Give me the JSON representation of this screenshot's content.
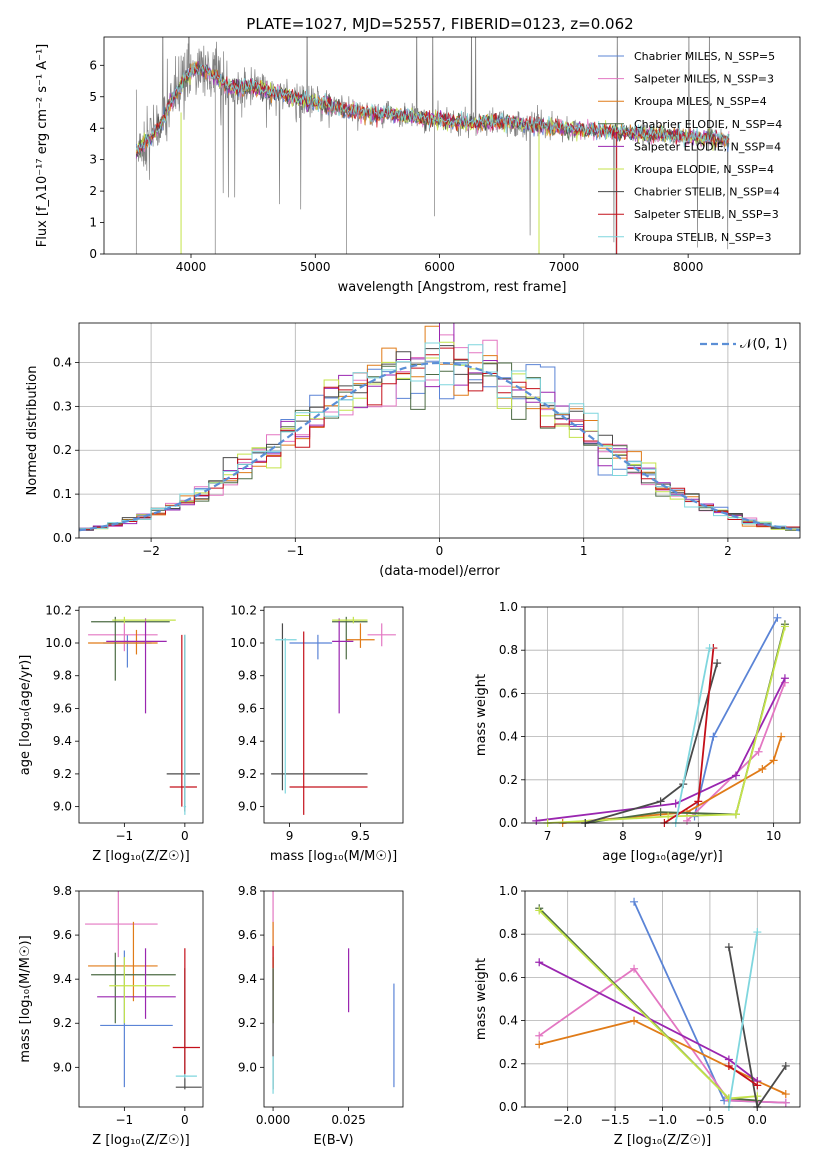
{
  "title": "PLATE=1027, MJD=52557, FIBERID=0123, z=0.062",
  "colors": {
    "chabrier_miles": "#5b84d6",
    "salpeter_miles": "#e377c2",
    "kroupa_miles": "#e07b18",
    "chabrier_elodie": "#4d6b44",
    "salpeter_elodie": "#9a26b0",
    "kroupa_elodie": "#c4e34a",
    "chabrier_stelib": "#4a4a4a",
    "salpeter_stelib": "#c4101a",
    "kroupa_stelib": "#7fd6de",
    "data": "#808080",
    "normal": "#5b8fd6"
  },
  "chart_data": [
    {
      "id": "spectrum",
      "type": "line",
      "xlabel": "wavelength [Angstrom, rest frame]",
      "ylabel": "Flux [f_λ10⁻¹⁷ erg cm⁻² s⁻¹ A⁻¹]",
      "xlim": [
        3300,
        8900
      ],
      "ylim": [
        0,
        6.9
      ],
      "xticks": [
        4000,
        5000,
        6000,
        7000,
        8000
      ],
      "yticks": [
        0,
        1,
        2,
        3,
        4,
        5,
        6
      ],
      "legend_position": "upper-right",
      "legend": [
        {
          "label": "Chabrier MILES, N_SSP=5",
          "color_key": "chabrier_miles"
        },
        {
          "label": "Salpeter MILES, N_SSP=3",
          "color_key": "salpeter_miles"
        },
        {
          "label": "Kroupa MILES, N_SSP=4",
          "color_key": "kroupa_miles"
        },
        {
          "label": "Chabrier ELODIE, N_SSP=4",
          "color_key": "chabrier_elodie"
        },
        {
          "label": "Salpeter ELODIE, N_SSP=4",
          "color_key": "salpeter_elodie"
        },
        {
          "label": "Kroupa ELODIE, N_SSP=4",
          "color_key": "kroupa_elodie"
        },
        {
          "label": "Chabrier STELIB, N_SSP=4",
          "color_key": "chabrier_stelib"
        },
        {
          "label": "Salpeter STELIB, N_SSP=3",
          "color_key": "salpeter_stelib"
        },
        {
          "label": "Kroupa STELIB, N_SSP=3",
          "color_key": "kroupa_stelib"
        }
      ],
      "continuum": [
        [
          3560,
          3.3
        ],
        [
          3650,
          3.6
        ],
        [
          3750,
          4.1
        ],
        [
          3850,
          4.9
        ],
        [
          3950,
          5.6
        ],
        [
          4050,
          5.9
        ],
        [
          4150,
          5.8
        ],
        [
          4300,
          5.3
        ],
        [
          4500,
          5.3
        ],
        [
          4700,
          5.1
        ],
        [
          4900,
          4.9
        ],
        [
          5100,
          4.7
        ],
        [
          5300,
          4.55
        ],
        [
          5500,
          4.45
        ],
        [
          5700,
          4.4
        ],
        [
          5900,
          4.3
        ],
        [
          6100,
          4.2
        ],
        [
          6300,
          4.15
        ],
        [
          6500,
          4.2
        ],
        [
          6700,
          4.1
        ],
        [
          6900,
          4.05
        ],
        [
          7100,
          3.95
        ],
        [
          7300,
          3.9
        ],
        [
          7500,
          3.85
        ],
        [
          7700,
          3.8
        ],
        [
          7900,
          3.75
        ],
        [
          8100,
          3.7
        ],
        [
          8300,
          3.65
        ]
      ]
    },
    {
      "id": "residuals",
      "type": "histogram",
      "xlabel": "(data-model)/error",
      "ylabel": "Normed distribution",
      "xlim": [
        -2.5,
        2.5
      ],
      "ylim": [
        0,
        0.49
      ],
      "xticks": [
        -2,
        -1,
        0,
        1,
        2
      ],
      "yticks": [
        0.0,
        0.1,
        0.2,
        0.3,
        0.4
      ],
      "grid": true,
      "legend_position": "upper-right",
      "legend_label": "𝒩(0, 1)",
      "bin_width": 0.1,
      "bin_start": -2.5
    },
    {
      "id": "z-age",
      "type": "errorbar",
      "xlabel": "Z [log₁₀(Z/Z☉)]",
      "ylabel": "age  [log₁₀(age/yr)]",
      "xlim": [
        -1.75,
        0.3
      ],
      "ylim": [
        8.9,
        10.22
      ],
      "xticks": [
        -1,
        0
      ],
      "yticks": [
        9.0,
        9.2,
        9.4,
        9.6,
        9.8,
        10.0,
        10.2
      ]
    },
    {
      "id": "mass-age",
      "type": "errorbar",
      "xlabel": "mass [log₁₀(M/M☉)]",
      "xlim": [
        8.82,
        9.8
      ],
      "ylim": [
        8.9,
        10.22
      ],
      "xticks": [
        9.0,
        9.5
      ],
      "yticks": [
        9.0,
        9.2,
        9.4,
        9.6,
        9.8,
        10.0,
        10.2
      ]
    },
    {
      "id": "age-massweight",
      "type": "line",
      "xlabel": "age  [log₁₀(age/yr)]",
      "ylabel": "mass weight",
      "xlim": [
        6.7,
        10.35
      ],
      "ylim": [
        0,
        1.0
      ],
      "xticks": [
        7,
        8,
        9,
        10
      ],
      "yticks": [
        0.0,
        0.2,
        0.4,
        0.6,
        0.8,
        1.0
      ],
      "grid": true
    },
    {
      "id": "z-mass",
      "type": "errorbar",
      "xlabel": "Z [log₁₀(Z/Z☉)]",
      "ylabel": "mass [log₁₀(M/M☉)]",
      "xlim": [
        -1.75,
        0.3
      ],
      "ylim": [
        8.82,
        9.8
      ],
      "xticks": [
        -1,
        0
      ],
      "yticks": [
        9.0,
        9.2,
        9.4,
        9.6,
        9.8
      ]
    },
    {
      "id": "ebv-mass",
      "type": "errorbar",
      "xlabel": "E(B-V)",
      "xlim": [
        -0.003,
        0.043
      ],
      "ylim": [
        8.82,
        9.8
      ],
      "xticks": [
        0.0,
        0.025
      ],
      "xticklabels": [
        "0.000",
        "0.025"
      ],
      "yticks": [
        9.0,
        9.2,
        9.4,
        9.6,
        9.8
      ]
    },
    {
      "id": "z-massweight",
      "type": "line",
      "xlabel": "Z [log₁₀(Z/Z☉)]",
      "ylabel": "mass weight",
      "xlim": [
        -2.45,
        0.45
      ],
      "ylim": [
        0,
        1.0
      ],
      "xticks": [
        -2.0,
        -1.5,
        -1.0,
        -0.5,
        0.0
      ],
      "xticklabels": [
        "−2.0",
        "−1.5",
        "−1.0",
        "−0.5",
        "0.0"
      ],
      "yticks": [
        0.0,
        0.2,
        0.4,
        0.6,
        0.8,
        1.0
      ],
      "grid": true
    }
  ],
  "series_points": {
    "age_weight": [
      {
        "key": "chabrier_miles",
        "pts": [
          [
            8.95,
            0.03
          ],
          [
            9.2,
            0.4
          ],
          [
            10.05,
            0.95
          ]
        ]
      },
      {
        "key": "salpeter_miles",
        "pts": [
          [
            8.85,
            0.01
          ],
          [
            9.8,
            0.33
          ],
          [
            10.15,
            0.65
          ]
        ]
      },
      {
        "key": "kroupa_miles",
        "pts": [
          [
            7.2,
            0.0
          ],
          [
            8.85,
            0.05
          ],
          [
            9.85,
            0.25
          ],
          [
            10.0,
            0.29
          ],
          [
            10.1,
            0.4
          ]
        ]
      },
      {
        "key": "chabrier_elodie",
        "pts": [
          [
            7.5,
            0.0
          ],
          [
            8.5,
            0.05
          ],
          [
            9.5,
            0.04
          ],
          [
            10.15,
            0.92
          ]
        ]
      },
      {
        "key": "salpeter_elodie",
        "pts": [
          [
            6.85,
            0.01
          ],
          [
            8.7,
            0.09
          ],
          [
            9.5,
            0.22
          ],
          [
            10.15,
            0.67
          ]
        ]
      },
      {
        "key": "kroupa_elodie",
        "pts": [
          [
            7.0,
            0.0
          ],
          [
            8.6,
            0.03
          ],
          [
            9.5,
            0.04
          ],
          [
            10.15,
            0.91
          ]
        ]
      },
      {
        "key": "chabrier_stelib",
        "pts": [
          [
            7.5,
            0.0
          ],
          [
            8.5,
            0.1
          ],
          [
            8.8,
            0.18
          ],
          [
            9.25,
            0.74
          ]
        ]
      },
      {
        "key": "salpeter_stelib",
        "pts": [
          [
            8.55,
            0.0
          ],
          [
            9.0,
            0.1
          ],
          [
            9.2,
            0.81
          ]
        ]
      },
      {
        "key": "kroupa_stelib",
        "pts": [
          [
            8.7,
            0.0
          ],
          [
            9.15,
            0.81
          ]
        ]
      }
    ],
    "z_weight": [
      {
        "key": "chabrier_miles",
        "pts": [
          [
            -1.3,
            0.95
          ],
          [
            -0.35,
            0.03
          ],
          [
            0.3,
            0.02
          ]
        ]
      },
      {
        "key": "salpeter_miles",
        "pts": [
          [
            -2.3,
            0.33
          ],
          [
            -1.3,
            0.64
          ],
          [
            -0.3,
            0.03
          ],
          [
            0.3,
            0.02
          ]
        ]
      },
      {
        "key": "kroupa_miles",
        "pts": [
          [
            -2.3,
            0.29
          ],
          [
            -1.3,
            0.4
          ],
          [
            0.0,
            0.12
          ],
          [
            0.3,
            0.06
          ]
        ]
      },
      {
        "key": "chabrier_elodie",
        "pts": [
          [
            -2.3,
            0.92
          ],
          [
            -0.3,
            0.04
          ],
          [
            0.0,
            0.03
          ]
        ]
      },
      {
        "key": "salpeter_elodie",
        "pts": [
          [
            -2.3,
            0.67
          ],
          [
            -0.3,
            0.22
          ],
          [
            0.0,
            0.12
          ]
        ]
      },
      {
        "key": "kroupa_elodie",
        "pts": [
          [
            -2.3,
            0.91
          ],
          [
            -0.3,
            0.04
          ],
          [
            0.0,
            0.05
          ]
        ]
      },
      {
        "key": "chabrier_stelib",
        "pts": [
          [
            -0.3,
            0.74
          ],
          [
            0.0,
            0.0
          ],
          [
            0.3,
            0.19
          ]
        ]
      },
      {
        "key": "salpeter_stelib",
        "pts": [
          [
            -0.3,
            0.19
          ],
          [
            0.0,
            0.1
          ]
        ]
      },
      {
        "key": "kroupa_stelib",
        "pts": [
          [
            -0.3,
            0.0
          ],
          [
            0.0,
            0.81
          ]
        ]
      }
    ]
  },
  "errorbars": {
    "z_age": [
      {
        "key": "chabrier_miles",
        "x": -0.95,
        "y": 10.0,
        "xe": [
          -1.35,
          -0.55
        ],
        "ye": [
          9.85,
          10.05
        ]
      },
      {
        "key": "salpeter_miles",
        "x": -1.0,
        "y": 10.05,
        "xe": [
          -1.6,
          -0.45
        ],
        "ye": [
          9.95,
          10.12
        ]
      },
      {
        "key": "kroupa_miles",
        "x": -0.8,
        "y": 10.0,
        "xe": [
          -1.6,
          -0.45
        ],
        "ye": [
          9.93,
          10.08
        ]
      },
      {
        "key": "chabrier_elodie",
        "x": -1.15,
        "y": 10.13,
        "xe": [
          -1.55,
          -0.25
        ],
        "ye": [
          9.77,
          10.16
        ]
      },
      {
        "key": "salpeter_elodie",
        "x": -0.65,
        "y": 10.01,
        "xe": [
          -1.3,
          -0.3
        ],
        "ye": [
          9.57,
          10.15
        ]
      },
      {
        "key": "kroupa_elodie",
        "x": -1.0,
        "y": 10.14,
        "xe": [
          -1.2,
          -0.15
        ],
        "ye": [
          10.12,
          10.16
        ]
      },
      {
        "key": "chabrier_stelib",
        "x": 0.0,
        "y": 9.2,
        "xe": [
          -0.3,
          0.25
        ],
        "ye": [
          8.97,
          10.05
        ]
      },
      {
        "key": "salpeter_stelib",
        "x": -0.05,
        "y": 9.12,
        "xe": [
          -0.25,
          0.2
        ],
        "ye": [
          9.0,
          10.05
        ]
      },
      {
        "key": "kroupa_stelib",
        "x": 0.0,
        "y": 9.0,
        "xe": [
          -0.02,
          0.02
        ],
        "ye": [
          8.95,
          10.05
        ]
      }
    ],
    "mass_age": [
      {
        "key": "chabrier_miles",
        "x": 9.2,
        "y": 10.0,
        "xe": [
          9.0,
          9.3
        ],
        "ye": [
          9.9,
          10.05
        ]
      },
      {
        "key": "salpeter_miles",
        "x": 9.65,
        "y": 10.05,
        "xe": [
          9.55,
          9.75
        ],
        "ye": [
          9.98,
          10.12
        ]
      },
      {
        "key": "kroupa_miles",
        "x": 9.5,
        "y": 10.02,
        "xe": [
          9.4,
          9.6
        ],
        "ye": [
          9.97,
          10.12
        ]
      },
      {
        "key": "chabrier_elodie",
        "x": 9.4,
        "y": 10.13,
        "xe": [
          9.3,
          9.55
        ],
        "ye": [
          9.9,
          10.16
        ]
      },
      {
        "key": "salpeter_elodie",
        "x": 9.35,
        "y": 10.01,
        "xe": [
          9.3,
          9.45
        ],
        "ye": [
          9.57,
          10.15
        ]
      },
      {
        "key": "kroupa_elodie",
        "x": 9.45,
        "y": 10.14,
        "xe": [
          9.3,
          9.55
        ],
        "ye": [
          10.12,
          10.16
        ]
      },
      {
        "key": "chabrier_stelib",
        "x": 8.95,
        "y": 9.2,
        "xe": [
          8.87,
          9.55
        ],
        "ye": [
          9.1,
          10.12
        ]
      },
      {
        "key": "salpeter_stelib",
        "x": 9.1,
        "y": 9.12,
        "xe": [
          9.0,
          9.55
        ],
        "ye": [
          8.95,
          10.07
        ]
      },
      {
        "key": "kroupa_stelib",
        "x": 8.97,
        "y": 10.02,
        "xe": [
          8.9,
          9.05
        ],
        "ye": [
          9.08,
          10.03
        ]
      }
    ],
    "z_mass": [
      {
        "key": "chabrier_miles",
        "x": -1.0,
        "y": 9.19,
        "xe": [
          -1.4,
          -0.2
        ],
        "ye": [
          8.91,
          9.53
        ]
      },
      {
        "key": "salpeter_miles",
        "x": -1.1,
        "y": 9.65,
        "xe": [
          -1.65,
          -0.45
        ],
        "ye": [
          9.5,
          9.8
        ]
      },
      {
        "key": "kroupa_miles",
        "x": -0.85,
        "y": 9.46,
        "xe": [
          -1.6,
          -0.45
        ],
        "ye": [
          9.3,
          9.66
        ]
      },
      {
        "key": "chabrier_elodie",
        "x": -1.15,
        "y": 9.42,
        "xe": [
          -1.55,
          -0.15
        ],
        "ye": [
          9.2,
          9.52
        ]
      },
      {
        "key": "salpeter_elodie",
        "x": -0.65,
        "y": 9.32,
        "xe": [
          -1.45,
          -0.15
        ],
        "ye": [
          9.22,
          9.54
        ]
      },
      {
        "key": "kroupa_elodie",
        "x": -1.0,
        "y": 9.37,
        "xe": [
          -1.25,
          -0.25
        ],
        "ye": [
          9.2,
          9.5
        ]
      },
      {
        "key": "chabrier_stelib",
        "x": 0.0,
        "y": 8.91,
        "xe": [
          -0.15,
          0.28
        ],
        "ye": [
          8.9,
          9.45
        ]
      },
      {
        "key": "salpeter_stelib",
        "x": 0.0,
        "y": 9.09,
        "xe": [
          -0.2,
          0.25
        ],
        "ye": [
          8.95,
          9.54
        ]
      },
      {
        "key": "kroupa_stelib",
        "x": 0.0,
        "y": 8.96,
        "xe": [
          -0.15,
          0.2
        ],
        "ye": [
          8.95,
          8.97
        ]
      }
    ],
    "ebv_mass": [
      {
        "key": "chabrier_miles",
        "x": 0.04,
        "y": 9.15,
        "xe": [
          0.04,
          0.04
        ],
        "ye": [
          8.91,
          9.38
        ]
      },
      {
        "key": "salpeter_miles",
        "x": 0.0,
        "y": 9.65,
        "xe": [
          0.0,
          0.0
        ],
        "ye": [
          9.5,
          9.8
        ]
      },
      {
        "key": "kroupa_miles",
        "x": 0.0,
        "y": 9.5,
        "xe": [
          0.0,
          0.0
        ],
        "ye": [
          9.35,
          9.66
        ]
      },
      {
        "key": "chabrier_elodie",
        "x": 0.0,
        "y": 9.4,
        "xe": [
          0.0,
          0.0
        ],
        "ye": [
          9.2,
          9.5
        ]
      },
      {
        "key": "salpeter_elodie",
        "x": 0.025,
        "y": 9.4,
        "xe": [
          0.025,
          0.025
        ],
        "ye": [
          9.25,
          9.54
        ]
      },
      {
        "key": "kroupa_elodie",
        "x": 0.0,
        "y": 9.35,
        "xe": [
          0.0,
          0.0
        ],
        "ye": [
          9.2,
          9.5
        ]
      },
      {
        "key": "chabrier_stelib",
        "x": 0.0,
        "y": 9.2,
        "xe": [
          0.0,
          0.0
        ],
        "ye": [
          8.9,
          9.45
        ]
      },
      {
        "key": "salpeter_stelib",
        "x": 0.0,
        "y": 9.5,
        "xe": [
          0.0,
          0.0
        ],
        "ye": [
          9.45,
          9.55
        ]
      },
      {
        "key": "kroupa_stelib",
        "x": 0.0,
        "y": 8.95,
        "xe": [
          0.0,
          0.0
        ],
        "ye": [
          8.88,
          9.05
        ]
      }
    ]
  }
}
